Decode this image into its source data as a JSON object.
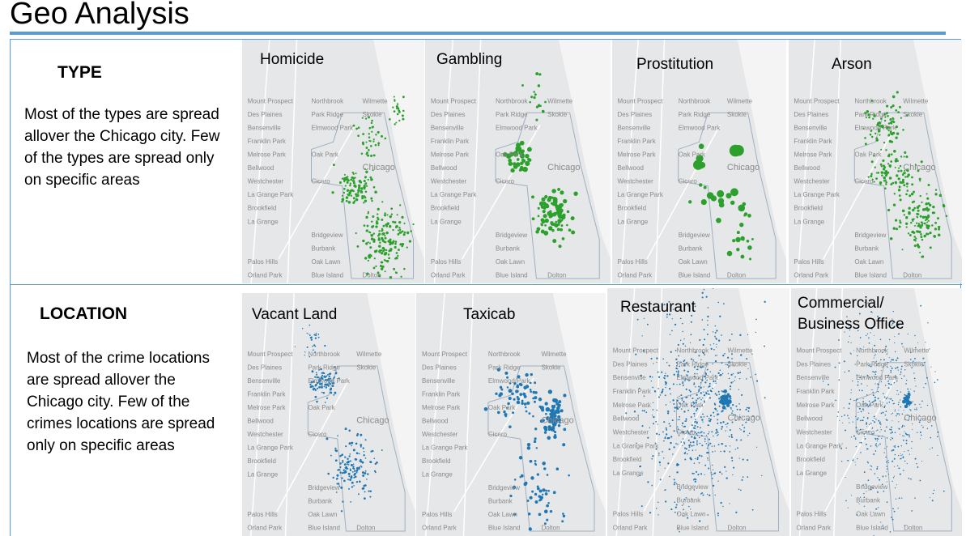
{
  "title": "Geo Analysis",
  "colors": {
    "accent": "#5b9bd5",
    "type_dots": "#2ca02c",
    "location_dots": "#1f77b4"
  },
  "type_section": {
    "heading": "TYPE",
    "description": "Most of the types are spread allover the Chicago city. Few of the types are spread only on specific areas",
    "maps": [
      {
        "label": "Homicide",
        "dot_color": "#2ca02c"
      },
      {
        "label": "Gambling",
        "dot_color": "#2ca02c"
      },
      {
        "label": "Prostitution",
        "dot_color": "#2ca02c"
      },
      {
        "label": "Arson",
        "dot_color": "#2ca02c"
      }
    ]
  },
  "location_section": {
    "heading": "LOCATION",
    "description": "Most of the crime locations are spread allover the Chicago city. Few of the crimes locations are spread only on specific areas",
    "maps": [
      {
        "label": "Vacant Land",
        "dot_color": "#1f77b4"
      },
      {
        "label": "Taxicab",
        "dot_color": "#1f77b4"
      },
      {
        "label": "Restaurant",
        "dot_color": "#1f77b4"
      },
      {
        "label": "Commercial/\nBusiness Office",
        "dot_color": "#1f77b4"
      }
    ]
  },
  "map_places": [
    "Wilmette",
    "Des Plaines",
    "Skokie",
    "Park Ridge",
    "Bensenville",
    "Franklin Park",
    "Elmwood Park",
    "Melrose Park",
    "Bellwood",
    "Oak Park",
    "Westchester",
    "La Grange Park",
    "Brookfield",
    "La Grange",
    "Cicero",
    "Chicago",
    "Bridgeview",
    "Burbank",
    "Oak Lawn",
    "Palos Hills",
    "Blue Island",
    "Dolton",
    "Orland Park",
    "Mount Prospect",
    "Northbrook"
  ]
}
